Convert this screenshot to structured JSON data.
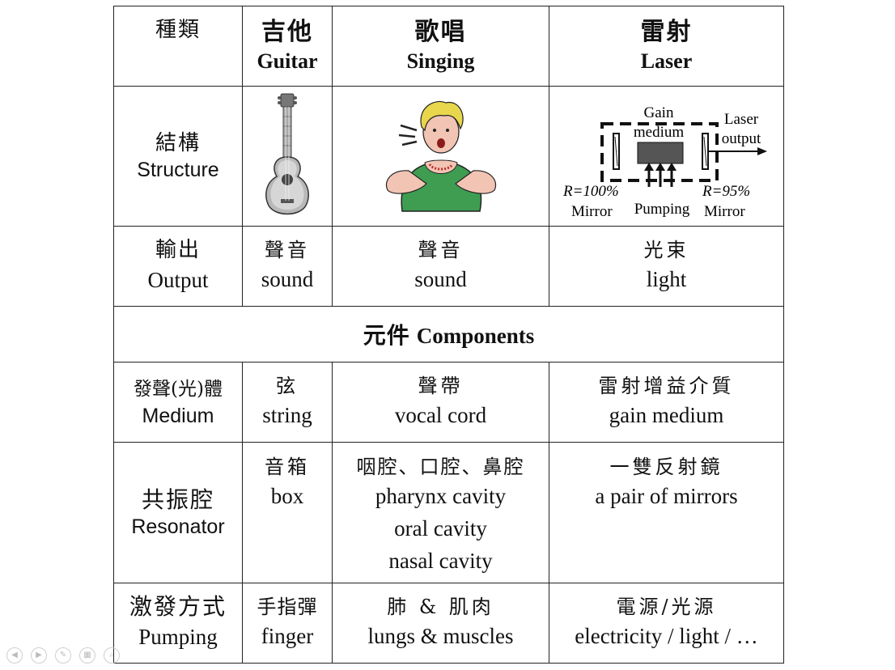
{
  "header": {
    "category": "種類",
    "guitar_zh": "吉他",
    "guitar_en": "Guitar",
    "singing_zh": "歌唱",
    "singing_en": "Singing",
    "laser_zh": "雷射",
    "laser_en": "Laser"
  },
  "structure": {
    "label_zh": "結構",
    "label_en": "Structure",
    "laser_diagram": {
      "gain": "Gain",
      "medium": "medium",
      "laser": "Laser",
      "output": "output",
      "r_left": "R=100%",
      "mirror_left": "Mirror",
      "pumping": "Pumping",
      "r_right": "R=95%",
      "mirror_right": "Mirror"
    }
  },
  "output": {
    "label_zh": "輸出",
    "label_en": "Output",
    "guitar_zh": "聲音",
    "guitar_en": "sound",
    "singing_zh": "聲音",
    "singing_en": "sound",
    "laser_zh": "光束",
    "laser_en": "light"
  },
  "components": {
    "zh": "元件",
    "en": "Components"
  },
  "medium": {
    "label_zh": "發聲(光)體",
    "label_en": "Medium",
    "guitar_zh": "弦",
    "guitar_en": "string",
    "singing_zh": "聲帶",
    "singing_en": "vocal cord",
    "laser_zh": "雷射增益介質",
    "laser_en": "gain medium"
  },
  "resonator": {
    "label_zh": "共振腔",
    "label_en": "Resonator",
    "guitar_zh": "音箱",
    "guitar_en": "box",
    "singing_zh": "咽腔、口腔、鼻腔",
    "singing_en": [
      "pharynx cavity",
      "oral cavity",
      "nasal cavity"
    ],
    "laser_zh": "一雙反射鏡",
    "laser_en": "a pair of mirrors"
  },
  "pumping": {
    "label_zh": "激發方式",
    "label_en": "Pumping",
    "guitar_zh": "手指彈",
    "guitar_en": "finger",
    "singing_zh": "肺 & 肌肉",
    "singing_en": "lungs & muscles",
    "laser_zh": "電源/光源",
    "laser_en": "electricity / light / …"
  },
  "colors": {
    "border": "#222222",
    "dress": "#3f9d52",
    "hair": "#e8d64c",
    "skin": "#f2c4b4"
  }
}
